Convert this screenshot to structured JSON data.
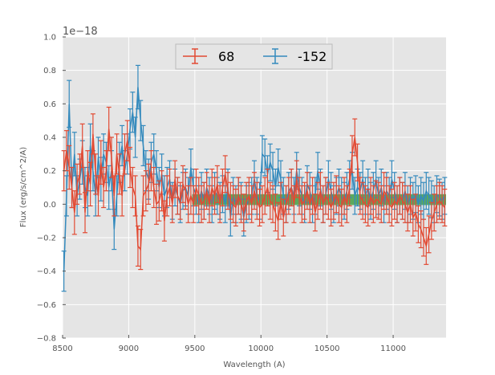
{
  "chart_data": {
    "type": "line",
    "title": "",
    "xlabel": "Wavelength (A)",
    "ylabel": "Flux (erg/s/cm^2/A)",
    "y_offset_label": "1e−18",
    "xlim": [
      8500,
      11400
    ],
    "ylim": [
      -0.8,
      1.0
    ],
    "y_scale_factor": 1e-18,
    "x_ticks": [
      8500,
      9000,
      9500,
      10000,
      10500,
      11000
    ],
    "y_ticks": [
      -0.8,
      -0.6,
      -0.4,
      -0.2,
      0.0,
      0.2,
      0.4,
      0.6,
      0.8,
      1.0
    ],
    "x_tick_labels": [
      "8500",
      "9000",
      "9500",
      "10000",
      "10500",
      "11000"
    ],
    "y_tick_labels": [
      "−0.8",
      "−0.6",
      "−0.4",
      "−0.2",
      "0.0",
      "0.2",
      "0.4",
      "0.6",
      "0.8",
      "1.0"
    ],
    "grid": true,
    "legend_position": "top-center",
    "band": {
      "x": [
        9480,
        11400
      ],
      "y": [
        -0.005,
        0.06
      ],
      "color": "#3a9a3a"
    },
    "series": [
      {
        "name": "68",
        "color": "#e24a33",
        "x": [
          8510,
          8530,
          8550,
          8570,
          8590,
          8610,
          8630,
          8650,
          8670,
          8690,
          8710,
          8730,
          8750,
          8770,
          8790,
          8810,
          8830,
          8850,
          8870,
          8890,
          8910,
          8930,
          8950,
          8970,
          8990,
          9010,
          9030,
          9050,
          9070,
          9090,
          9110,
          9130,
          9150,
          9170,
          9190,
          9210,
          9230,
          9250,
          9270,
          9290,
          9310,
          9330,
          9350,
          9370,
          9390,
          9410,
          9430,
          9450,
          9470,
          9490,
          9510,
          9530,
          9550,
          9570,
          9590,
          9610,
          9630,
          9650,
          9670,
          9690,
          9710,
          9730,
          9750,
          9770,
          9790,
          9810,
          9830,
          9850,
          9870,
          9890,
          9910,
          9930,
          9950,
          9970,
          9990,
          10010,
          10030,
          10050,
          10070,
          10090,
          10110,
          10130,
          10150,
          10170,
          10190,
          10210,
          10230,
          10250,
          10270,
          10290,
          10310,
          10330,
          10350,
          10370,
          10390,
          10410,
          10430,
          10450,
          10470,
          10490,
          10510,
          10530,
          10550,
          10570,
          10590,
          10610,
          10630,
          10650,
          10670,
          10690,
          10710,
          10730,
          10750,
          10770,
          10790,
          10810,
          10830,
          10850,
          10870,
          10890,
          10910,
          10930,
          10950,
          10970,
          10990,
          11010,
          11030,
          11050,
          11070,
          11090,
          11110,
          11130,
          11150,
          11170,
          11190,
          11210,
          11230,
          11250,
          11270,
          11290,
          11310,
          11330,
          11350,
          11370,
          11390
        ],
        "y": [
          0.2,
          0.32,
          0.22,
          0.1,
          -0.05,
          0.12,
          0.18,
          0.35,
          -0.05,
          0.2,
          0.12,
          0.42,
          0.18,
          0.05,
          0.25,
          0.1,
          0.2,
          0.45,
          0.28,
          0.05,
          0.3,
          0.18,
          0.05,
          0.3,
          0.38,
          0.22,
          0.1,
          0.05,
          -0.25,
          -0.27,
          0.05,
          0.08,
          0.12,
          0.2,
          0.1,
          0.0,
          0.02,
          0.08,
          -0.1,
          0.05,
          0.1,
          0.0,
          0.15,
          0.05,
          0.02,
          0.12,
          0.08,
          0.0,
          0.05,
          0.0,
          0.1,
          0.05,
          0.0,
          0.02,
          0.08,
          0.0,
          0.1,
          0.05,
          0.12,
          0.0,
          0.1,
          0.18,
          0.08,
          0.02,
          0.0,
          -0.02,
          0.05,
          0.0,
          -0.05,
          0.02,
          0.05,
          0.0,
          0.08,
          0.02,
          -0.02,
          0.0,
          0.05,
          0.1,
          0.02,
          0.0,
          -0.05,
          -0.1,
          0.02,
          -0.08,
          0.0,
          0.05,
          0.1,
          0.0,
          0.15,
          0.05,
          0.0,
          0.02,
          0.08,
          0.0,
          0.05,
          -0.05,
          0.02,
          0.08,
          0.0,
          0.05,
          0.02,
          -0.02,
          0.02,
          0.06,
          0.0,
          -0.02,
          0.05,
          0.0,
          0.1,
          0.3,
          0.4,
          0.25,
          0.05,
          0.02,
          0.0,
          -0.02,
          0.05,
          0.0,
          0.03,
          0.02,
          0.0,
          0.08,
          0.05,
          0.0,
          -0.02,
          0.02,
          0.0,
          0.05,
          0.02,
          0.0,
          -0.05,
          0.0,
          -0.08,
          -0.05,
          -0.12,
          -0.15,
          -0.2,
          -0.25,
          -0.18,
          -0.1,
          -0.05,
          0.0,
          0.02,
          0.0,
          -0.02
        ],
        "err": [
          0.12,
          0.12,
          0.13,
          0.12,
          0.13,
          0.12,
          0.12,
          0.13,
          0.12,
          0.12,
          0.13,
          0.12,
          0.12,
          0.12,
          0.13,
          0.12,
          0.12,
          0.13,
          0.12,
          0.12,
          0.12,
          0.12,
          0.12,
          0.12,
          0.12,
          0.12,
          0.12,
          0.12,
          0.12,
          0.12,
          0.12,
          0.12,
          0.12,
          0.12,
          0.12,
          0.12,
          0.12,
          0.12,
          0.12,
          0.12,
          0.11,
          0.11,
          0.11,
          0.11,
          0.11,
          0.11,
          0.11,
          0.11,
          0.11,
          0.11,
          0.11,
          0.11,
          0.11,
          0.11,
          0.11,
          0.11,
          0.11,
          0.11,
          0.11,
          0.11,
          0.11,
          0.11,
          0.11,
          0.11,
          0.11,
          0.11,
          0.11,
          0.11,
          0.11,
          0.11,
          0.11,
          0.11,
          0.11,
          0.11,
          0.11,
          0.11,
          0.11,
          0.11,
          0.11,
          0.11,
          0.11,
          0.11,
          0.11,
          0.11,
          0.11,
          0.11,
          0.11,
          0.11,
          0.11,
          0.11,
          0.11,
          0.11,
          0.11,
          0.11,
          0.11,
          0.11,
          0.11,
          0.11,
          0.11,
          0.11,
          0.11,
          0.11,
          0.11,
          0.11,
          0.11,
          0.11,
          0.11,
          0.11,
          0.11,
          0.11,
          0.11,
          0.11,
          0.11,
          0.11,
          0.11,
          0.11,
          0.11,
          0.11,
          0.11,
          0.11,
          0.11,
          0.11,
          0.11,
          0.11,
          0.11,
          0.11,
          0.11,
          0.11,
          0.11,
          0.11,
          0.11,
          0.11,
          0.11,
          0.11,
          0.11,
          0.11,
          0.11,
          0.11,
          0.11,
          0.11,
          0.11,
          0.11,
          0.11,
          0.11,
          0.11
        ]
      },
      {
        "name": "-152",
        "color": "#348abd",
        "x": [
          8510,
          8530,
          8550,
          8570,
          8590,
          8610,
          8630,
          8650,
          8670,
          8690,
          8710,
          8730,
          8750,
          8770,
          8790,
          8810,
          8830,
          8850,
          8870,
          8890,
          8910,
          8930,
          8950,
          8970,
          8990,
          9010,
          9030,
          9050,
          9070,
          9090,
          9110,
          9130,
          9150,
          9170,
          9190,
          9210,
          9230,
          9250,
          9270,
          9290,
          9310,
          9330,
          9350,
          9370,
          9390,
          9410,
          9430,
          9450,
          9470,
          9490,
          9510,
          9530,
          9550,
          9570,
          9590,
          9610,
          9630,
          9650,
          9670,
          9690,
          9710,
          9730,
          9750,
          9770,
          9790,
          9810,
          9830,
          9850,
          9870,
          9890,
          9910,
          9930,
          9950,
          9970,
          9990,
          10010,
          10030,
          10050,
          10070,
          10090,
          10110,
          10130,
          10150,
          10170,
          10190,
          10210,
          10230,
          10250,
          10270,
          10290,
          10310,
          10330,
          10350,
          10370,
          10390,
          10410,
          10430,
          10450,
          10470,
          10490,
          10510,
          10530,
          10550,
          10570,
          10590,
          10610,
          10630,
          10650,
          10670,
          10690,
          10710,
          10730,
          10750,
          10770,
          10790,
          10810,
          10830,
          10850,
          10870,
          10890,
          10910,
          10930,
          10950,
          10970,
          10990,
          11010,
          11030,
          11050,
          11070,
          11090,
          11110,
          11130,
          11150,
          11170,
          11190,
          11210,
          11230,
          11250,
          11270,
          11290,
          11310,
          11330,
          11350,
          11370,
          11390
        ],
        "y": [
          -0.4,
          0.05,
          0.6,
          0.1,
          0.3,
          0.05,
          0.15,
          0.25,
          0.1,
          0.05,
          0.35,
          0.2,
          0.05,
          0.28,
          0.15,
          0.3,
          0.25,
          0.1,
          0.2,
          -0.15,
          0.05,
          0.25,
          0.35,
          0.2,
          0.3,
          0.45,
          0.55,
          0.4,
          0.7,
          0.5,
          0.35,
          0.2,
          0.15,
          0.25,
          0.3,
          0.2,
          0.1,
          0.18,
          0.05,
          0.1,
          0.15,
          0.02,
          0.1,
          0.05,
          0.0,
          0.08,
          0.1,
          0.05,
          0.22,
          0.1,
          0.05,
          0.0,
          0.08,
          0.02,
          0.1,
          0.05,
          0.0,
          0.08,
          0.05,
          0.02,
          0.06,
          0.0,
          0.1,
          -0.08,
          0.05,
          0.0,
          0.05,
          0.02,
          -0.08,
          0.0,
          0.02,
          0.05,
          0.15,
          0.05,
          0.02,
          0.3,
          0.28,
          0.18,
          0.25,
          0.2,
          0.1,
          0.22,
          0.15,
          0.05,
          0.0,
          0.08,
          0.1,
          0.05,
          0.2,
          0.1,
          0.05,
          0.0,
          0.12,
          0.08,
          0.0,
          0.05,
          0.2,
          0.1,
          0.0,
          0.05,
          0.15,
          0.08,
          0.0,
          0.05,
          0.1,
          0.05,
          0.02,
          0.08,
          0.15,
          0.2,
          0.05,
          0.1,
          0.08,
          0.15,
          0.05,
          0.1,
          0.02,
          0.08,
          0.15,
          0.05,
          0.1,
          0.0,
          0.08,
          0.05,
          0.15,
          0.08,
          0.0,
          0.05,
          0.02,
          0.08,
          0.0,
          0.05,
          0.02,
          0.06,
          0.0,
          0.05,
          0.02,
          0.08,
          0.05,
          0.03,
          0.0,
          0.06,
          0.04,
          0.02,
          0.05
        ],
        "err": [
          0.12,
          0.12,
          0.14,
          0.12,
          0.13,
          0.12,
          0.12,
          0.13,
          0.12,
          0.12,
          0.13,
          0.12,
          0.12,
          0.12,
          0.13,
          0.12,
          0.12,
          0.13,
          0.12,
          0.12,
          0.12,
          0.12,
          0.12,
          0.12,
          0.12,
          0.12,
          0.12,
          0.12,
          0.13,
          0.12,
          0.12,
          0.12,
          0.12,
          0.12,
          0.12,
          0.12,
          0.12,
          0.12,
          0.12,
          0.12,
          0.11,
          0.11,
          0.11,
          0.11,
          0.11,
          0.11,
          0.11,
          0.11,
          0.11,
          0.11,
          0.11,
          0.11,
          0.11,
          0.11,
          0.11,
          0.11,
          0.11,
          0.11,
          0.11,
          0.11,
          0.11,
          0.11,
          0.11,
          0.11,
          0.11,
          0.11,
          0.11,
          0.11,
          0.11,
          0.11,
          0.11,
          0.11,
          0.11,
          0.11,
          0.11,
          0.11,
          0.11,
          0.11,
          0.11,
          0.11,
          0.11,
          0.11,
          0.11,
          0.11,
          0.11,
          0.11,
          0.11,
          0.11,
          0.11,
          0.11,
          0.11,
          0.11,
          0.11,
          0.11,
          0.11,
          0.11,
          0.11,
          0.11,
          0.11,
          0.11,
          0.11,
          0.11,
          0.11,
          0.11,
          0.11,
          0.11,
          0.11,
          0.11,
          0.11,
          0.11,
          0.11,
          0.11,
          0.11,
          0.11,
          0.11,
          0.11,
          0.11,
          0.11,
          0.11,
          0.11,
          0.11,
          0.11,
          0.11,
          0.11,
          0.11,
          0.11,
          0.11,
          0.11,
          0.11,
          0.11,
          0.11,
          0.11,
          0.11,
          0.11,
          0.11,
          0.11,
          0.11,
          0.11,
          0.11,
          0.11,
          0.11,
          0.11,
          0.11,
          0.11,
          0.11
        ]
      }
    ]
  }
}
